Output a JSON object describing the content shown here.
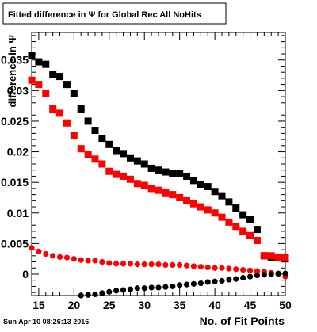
{
  "chart_data": {
    "type": "scatter",
    "title": "Fitted difference in  Ψ  for Global Rec All NoHits",
    "xlabel": "No. of Fit Points",
    "ylabel": "difference in  Ψ",
    "xlim": [
      14,
      50
    ],
    "ylim": [
      -0.0035,
      0.0395
    ],
    "x_ticks": [
      {
        "value": 15,
        "label": "15"
      },
      {
        "value": 20,
        "label": "20"
      },
      {
        "value": 25,
        "label": "25"
      },
      {
        "value": 30,
        "label": "30"
      },
      {
        "value": 35,
        "label": "35"
      },
      {
        "value": 40,
        "label": "40"
      },
      {
        "value": 45,
        "label": "45"
      },
      {
        "value": 50,
        "label": "50"
      }
    ],
    "y_ticks": [
      {
        "value": 0,
        "label": "0"
      },
      {
        "value": 0.005,
        "label": "0.005"
      },
      {
        "value": 0.01,
        "label": "0.01"
      },
      {
        "value": 0.015,
        "label": "0.015"
      },
      {
        "value": 0.02,
        "label": "0.02"
      },
      {
        "value": 0.025,
        "label": "0.025"
      },
      {
        "value": 0.03,
        "label": "0.03"
      },
      {
        "value": 0.035,
        "label": "0.035"
      }
    ],
    "grid": false,
    "legend": "none",
    "series": [
      {
        "marker": "square",
        "color": "#000000",
        "x": [
          14,
          15,
          16,
          17,
          18,
          19,
          20,
          21,
          22,
          23,
          24,
          25,
          26,
          27,
          28,
          29,
          30,
          31,
          32,
          33,
          34,
          35,
          36,
          37,
          38,
          39,
          40,
          41,
          42,
          43,
          44,
          45,
          46,
          47,
          48,
          49,
          50
        ],
        "y": [
          0.0358,
          0.0347,
          0.0343,
          0.0327,
          0.0323,
          0.031,
          0.0295,
          0.027,
          0.025,
          0.0235,
          0.0222,
          0.0212,
          0.0202,
          0.0197,
          0.019,
          0.0185,
          0.018,
          0.0173,
          0.017,
          0.0167,
          0.0165,
          0.0165,
          0.016,
          0.0153,
          0.0147,
          0.0143,
          0.0135,
          0.0128,
          0.0118,
          0.0108,
          0.0097,
          0.009,
          0.0073,
          0.003,
          0.0027,
          0.0027,
          0.0025
        ]
      },
      {
        "marker": "square",
        "color": "#ff0000",
        "x": [
          14,
          15,
          16,
          17,
          18,
          19,
          20,
          21,
          22,
          23,
          24,
          25,
          26,
          27,
          28,
          29,
          30,
          31,
          32,
          33,
          34,
          35,
          36,
          37,
          38,
          39,
          40,
          41,
          42,
          43,
          44,
          45,
          46,
          47,
          48,
          49,
          50
        ],
        "y": [
          0.0317,
          0.031,
          0.0295,
          0.027,
          0.0263,
          0.0247,
          0.0227,
          0.0205,
          0.0195,
          0.0188,
          0.018,
          0.0168,
          0.0163,
          0.016,
          0.0155,
          0.0148,
          0.0145,
          0.014,
          0.0137,
          0.0133,
          0.013,
          0.0125,
          0.012,
          0.0115,
          0.011,
          0.0105,
          0.01,
          0.0093,
          0.0085,
          0.0078,
          0.007,
          0.0063,
          0.0055,
          0.003,
          0.003,
          0.0027,
          0.0027
        ]
      },
      {
        "marker": "circle",
        "color": "#ff0000",
        "x": [
          14,
          15,
          16,
          17,
          18,
          19,
          20,
          21,
          22,
          23,
          24,
          25,
          26,
          27,
          28,
          29,
          30,
          31,
          32,
          33,
          34,
          35,
          36,
          37,
          38,
          39,
          40,
          41,
          42,
          43,
          44,
          45,
          46,
          47,
          48,
          49,
          50
        ],
        "y": [
          0.0043,
          0.0037,
          0.0033,
          0.003,
          0.0028,
          0.0027,
          0.0025,
          0.0023,
          0.0022,
          0.0022,
          0.002,
          0.0018,
          0.0017,
          0.0017,
          0.0017,
          0.0016,
          0.0016,
          0.0016,
          0.0016,
          0.0015,
          0.0015,
          0.0015,
          0.0014,
          0.0013,
          0.0012,
          0.0011,
          0.001,
          0.001,
          0.0009,
          0.0008,
          0.0007,
          0.0006,
          0.0005,
          0.0004,
          0.0002,
          0.0,
          -0.0004
        ]
      },
      {
        "marker": "circle",
        "color": "#000000",
        "x": [
          21,
          22,
          23,
          24,
          25,
          26,
          27,
          28,
          29,
          30,
          31,
          32,
          33,
          34,
          35,
          36,
          37,
          38,
          39,
          40,
          41,
          42,
          43,
          44,
          45,
          46,
          47,
          48,
          49,
          50
        ],
        "y": [
          -0.0035,
          -0.0034,
          -0.0033,
          -0.0031,
          -0.0029,
          -0.0027,
          -0.0026,
          -0.0025,
          -0.0023,
          -0.0023,
          -0.0022,
          -0.0022,
          -0.0021,
          -0.002,
          -0.0018,
          -0.0017,
          -0.0016,
          -0.0015,
          -0.0013,
          -0.0012,
          -0.0011,
          -0.0009,
          -0.0008,
          -0.0006,
          -0.0004,
          -0.0002,
          -0.0001,
          0.0,
          0.0001,
          0.0001
        ]
      }
    ]
  },
  "footer": {
    "timestamp": "Sun Apr 10 08:26:13 2016"
  }
}
